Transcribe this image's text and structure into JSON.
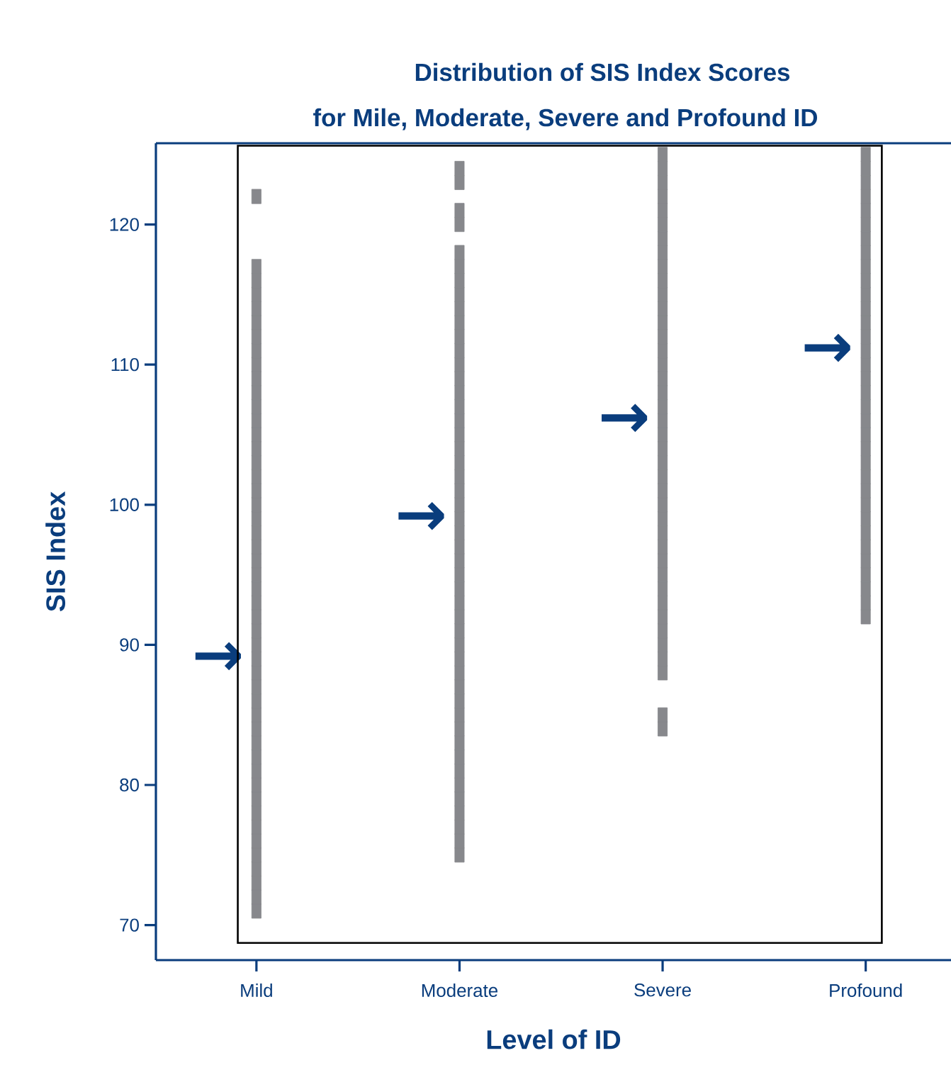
{
  "chart_data": {
    "type": "scatter",
    "title": "Distribution of SIS Index Scores",
    "subtitle": "for Mile, Moderate, Severe and Profound ID",
    "xlabel": "Level of ID",
    "ylabel": "SIS Index",
    "categories": [
      "Mild",
      "Moderate",
      "Severe",
      "Profound"
    ],
    "ylim": [
      67.5,
      125.8
    ],
    "yticks": [
      70,
      80,
      90,
      100,
      110,
      120
    ],
    "marker": "square",
    "series": [
      {
        "color": "#87888c",
        "x": [
          "Mild",
          "Mild",
          "Mild",
          "Mild",
          "Mild",
          "Mild",
          "Mild",
          "Mild",
          "Mild",
          "Mild",
          "Mild",
          "Mild",
          "Mild",
          "Mild",
          "Mild",
          "Mild",
          "Mild",
          "Mild",
          "Mild",
          "Mild",
          "Mild",
          "Mild",
          "Mild",
          "Mild",
          "Mild",
          "Mild",
          "Mild",
          "Mild",
          "Mild",
          "Mild",
          "Mild",
          "Mild",
          "Mild",
          "Mild",
          "Mild",
          "Mild",
          "Mild",
          "Mild",
          "Mild",
          "Mild",
          "Mild",
          "Mild",
          "Mild",
          "Mild",
          "Mild",
          "Mild",
          "Mild",
          "Mild"
        ],
        "values": [
          71,
          72,
          73,
          74,
          75,
          76,
          77,
          78,
          79,
          80,
          81,
          82,
          83,
          84,
          85,
          86,
          87,
          88,
          89,
          90,
          91,
          92,
          93,
          94,
          95,
          96,
          97,
          98,
          99,
          100,
          101,
          102,
          103,
          104,
          105,
          106,
          107,
          108,
          109,
          110,
          111,
          112,
          113,
          114,
          115,
          116,
          117,
          122
        ]
      },
      {
        "color": "#87888c",
        "x": [
          "Moderate",
          "Moderate",
          "Moderate",
          "Moderate",
          "Moderate",
          "Moderate",
          "Moderate",
          "Moderate",
          "Moderate",
          "Moderate",
          "Moderate",
          "Moderate",
          "Moderate",
          "Moderate",
          "Moderate",
          "Moderate",
          "Moderate",
          "Moderate",
          "Moderate",
          "Moderate",
          "Moderate",
          "Moderate",
          "Moderate",
          "Moderate",
          "Moderate",
          "Moderate",
          "Moderate",
          "Moderate",
          "Moderate",
          "Moderate",
          "Moderate",
          "Moderate",
          "Moderate",
          "Moderate",
          "Moderate",
          "Moderate",
          "Moderate",
          "Moderate",
          "Moderate",
          "Moderate",
          "Moderate",
          "Moderate",
          "Moderate",
          "Moderate",
          "Moderate",
          "Moderate",
          "Moderate",
          "Moderate"
        ],
        "values": [
          75,
          76,
          77,
          78,
          79,
          80,
          81,
          82,
          83,
          84,
          85,
          86,
          87,
          88,
          89,
          90,
          91,
          92,
          93,
          94,
          95,
          96,
          97,
          98,
          99,
          100,
          101,
          102,
          103,
          104,
          105,
          106,
          107,
          108,
          109,
          110,
          111,
          112,
          113,
          114,
          115,
          116,
          117,
          118,
          120,
          121,
          123,
          124
        ]
      },
      {
        "color": "#87888c",
        "x": [
          "Severe",
          "Severe",
          "Severe",
          "Severe",
          "Severe",
          "Severe",
          "Severe",
          "Severe",
          "Severe",
          "Severe",
          "Severe",
          "Severe",
          "Severe",
          "Severe",
          "Severe",
          "Severe",
          "Severe",
          "Severe",
          "Severe",
          "Severe",
          "Severe",
          "Severe",
          "Severe",
          "Severe",
          "Severe",
          "Severe",
          "Severe",
          "Severe",
          "Severe",
          "Severe",
          "Severe",
          "Severe",
          "Severe",
          "Severe",
          "Severe",
          "Severe",
          "Severe",
          "Severe",
          "Severe",
          "Severe"
        ],
        "values": [
          84,
          85,
          88,
          89,
          90,
          91,
          92,
          93,
          94,
          95,
          96,
          97,
          98,
          99,
          100,
          101,
          102,
          103,
          104,
          105,
          106,
          107,
          108,
          109,
          110,
          111,
          112,
          113,
          114,
          115,
          116,
          117,
          118,
          119,
          120,
          121,
          122,
          123,
          124,
          125
        ]
      },
      {
        "color": "#87888c",
        "x": [
          "Profound",
          "Profound",
          "Profound",
          "Profound",
          "Profound",
          "Profound",
          "Profound",
          "Profound",
          "Profound",
          "Profound",
          "Profound",
          "Profound",
          "Profound",
          "Profound",
          "Profound",
          "Profound",
          "Profound",
          "Profound",
          "Profound",
          "Profound",
          "Profound",
          "Profound",
          "Profound",
          "Profound",
          "Profound",
          "Profound",
          "Profound",
          "Profound",
          "Profound",
          "Profound",
          "Profound",
          "Profound",
          "Profound",
          "Profound"
        ],
        "values": [
          92,
          93,
          94,
          95,
          96,
          97,
          98,
          99,
          100,
          101,
          102,
          103,
          104,
          105,
          106,
          107,
          108,
          109,
          110,
          111,
          112,
          113,
          114,
          115,
          116,
          117,
          118,
          119,
          120,
          121,
          122,
          123,
          124,
          125
        ]
      }
    ],
    "annotations": [
      {
        "text": "→",
        "x": "Mild",
        "y": 89
      },
      {
        "text": "→",
        "x": "Moderate",
        "y": 99
      },
      {
        "text": "→",
        "x": "Severe",
        "y": 106
      },
      {
        "text": "→",
        "x": "Profound",
        "y": 111
      }
    ]
  }
}
